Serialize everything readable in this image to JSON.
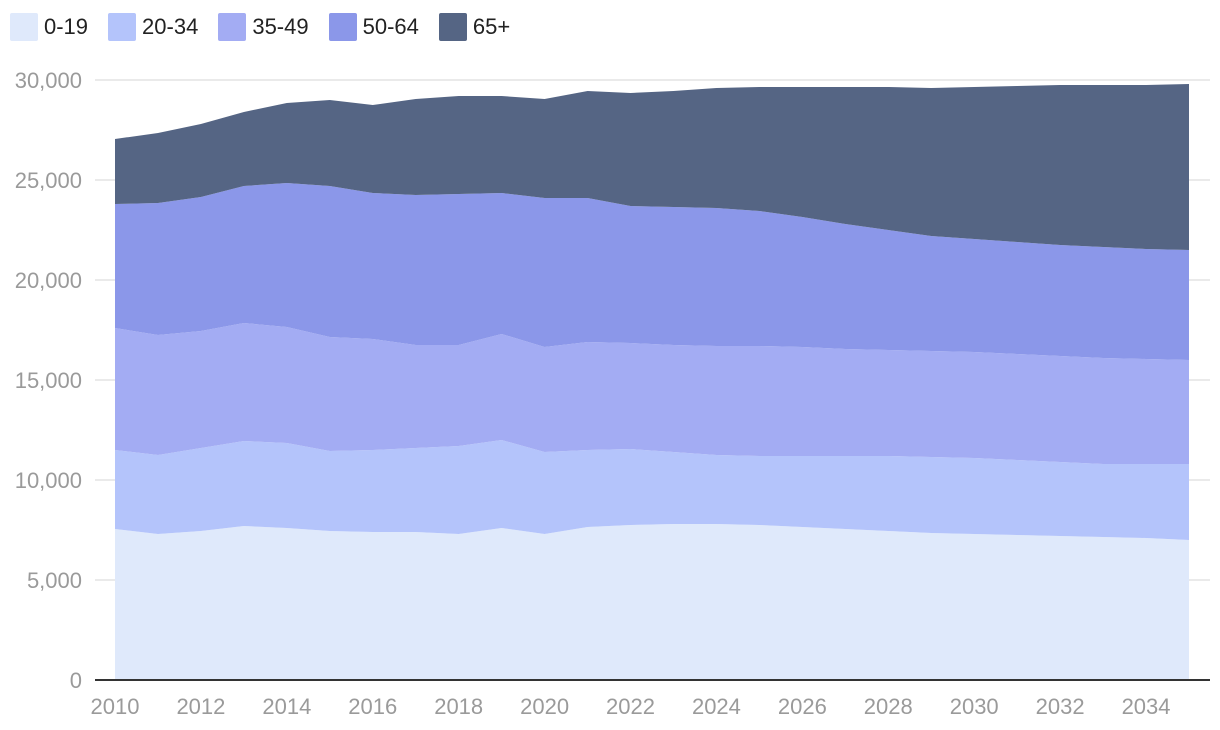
{
  "colors": {
    "0-19": "#dfe9fb",
    "20-34": "#b4c4fb",
    "35-49": "#a3acf3",
    "50-64": "#8b97e9",
    "65+": "#556584",
    "grid": "#e3e3e3",
    "axis": "#333333"
  },
  "chart_data": {
    "type": "area",
    "stacked": true,
    "title": "",
    "xlabel": "",
    "ylabel": "",
    "grid": true,
    "legend_position": "top-left",
    "ylim": [
      0,
      30000
    ],
    "xlim": [
      2010,
      2035
    ],
    "y_ticks": [
      "0",
      "5,000",
      "10,000",
      "15,000",
      "20,000",
      "25,000",
      "30,000"
    ],
    "x_ticks": [
      "2010",
      "2012",
      "2014",
      "2016",
      "2018",
      "2020",
      "2022",
      "2024",
      "2026",
      "2028",
      "2030",
      "2032",
      "2034"
    ],
    "x": [
      2010,
      2011,
      2012,
      2013,
      2014,
      2015,
      2016,
      2017,
      2018,
      2019,
      2020,
      2021,
      2022,
      2023,
      2024,
      2025,
      2026,
      2027,
      2028,
      2029,
      2030,
      2031,
      2032,
      2033,
      2034,
      2035
    ],
    "series": [
      {
        "name": "0-19",
        "values": [
          7550,
          7300,
          7450,
          7700,
          7600,
          7450,
          7400,
          7400,
          7300,
          7600,
          7300,
          7650,
          7750,
          7800,
          7800,
          7750,
          7650,
          7550,
          7450,
          7350,
          7300,
          7250,
          7200,
          7150,
          7100,
          7000
        ]
      },
      {
        "name": "20-34",
        "values": [
          3950,
          3950,
          4150,
          4250,
          4250,
          4000,
          4100,
          4200,
          4400,
          4400,
          4100,
          3850,
          3800,
          3600,
          3450,
          3450,
          3550,
          3650,
          3750,
          3800,
          3800,
          3750,
          3700,
          3650,
          3700,
          3800
        ]
      },
      {
        "name": "35-49",
        "values": [
          6100,
          6000,
          5850,
          5900,
          5800,
          5700,
          5550,
          5150,
          5050,
          5300,
          5250,
          5400,
          5300,
          5350,
          5450,
          5500,
          5450,
          5350,
          5300,
          5300,
          5300,
          5300,
          5300,
          5300,
          5250,
          5200
        ]
      },
      {
        "name": "50-64",
        "values": [
          6200,
          6600,
          6700,
          6850,
          7200,
          7550,
          7300,
          7500,
          7550,
          7050,
          7450,
          7200,
          6850,
          6900,
          6900,
          6750,
          6500,
          6250,
          6000,
          5750,
          5650,
          5600,
          5550,
          5550,
          5500,
          5500
        ]
      },
      {
        "name": "65+",
        "values": [
          3250,
          3500,
          3650,
          3700,
          4000,
          4300,
          4400,
          4800,
          4900,
          4850,
          4950,
          5350,
          5650,
          5800,
          6000,
          6200,
          6500,
          6850,
          7150,
          7400,
          7600,
          7800,
          8000,
          8100,
          8200,
          8300
        ]
      }
    ]
  }
}
